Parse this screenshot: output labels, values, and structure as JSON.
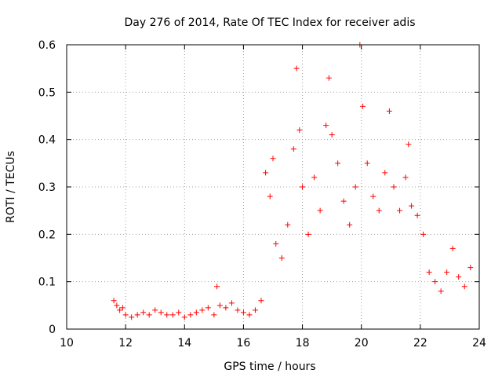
{
  "chart_data": {
    "type": "scatter",
    "title": "Day 276 of 2014, Rate Of TEC Index for receiver adis",
    "xlabel": "GPS time / hours",
    "ylabel": "ROTI / TECUs",
    "xlim": [
      10,
      24
    ],
    "ylim": [
      0,
      0.6
    ],
    "grid": true,
    "marker": "+",
    "color": "#ff0000",
    "x_ticks": [
      10,
      12,
      14,
      16,
      18,
      20,
      22,
      24
    ],
    "x_tick_labels": [
      "10",
      "12",
      "14",
      "16",
      "18",
      "20",
      "22",
      "24"
    ],
    "y_ticks": [
      0,
      0.1,
      0.2,
      0.3,
      0.4,
      0.5,
      0.6
    ],
    "y_tick_labels": [
      "0",
      "0.1",
      "0.2",
      "0.3",
      "0.4",
      "0.5",
      "0.6"
    ],
    "series": [
      {
        "name": "adis",
        "x": [
          11.6,
          11.7,
          11.8,
          11.9,
          12.0,
          12.2,
          12.4,
          12.6,
          12.8,
          13.0,
          13.2,
          13.4,
          13.6,
          13.8,
          14.0,
          14.2,
          14.4,
          14.6,
          14.8,
          15.0,
          15.1,
          15.2,
          15.4,
          15.6,
          15.8,
          16.0,
          16.2,
          16.4,
          16.6,
          16.75,
          16.9,
          17.0,
          17.1,
          17.3,
          17.5,
          17.7,
          17.8,
          17.9,
          18.0,
          18.2,
          18.4,
          18.6,
          18.8,
          18.9,
          19.0,
          19.2,
          19.4,
          19.6,
          19.8,
          19.95,
          20.05,
          20.2,
          20.4,
          20.6,
          20.8,
          20.95,
          21.1,
          21.3,
          21.5,
          21.6,
          21.7,
          21.9,
          22.1,
          22.3,
          22.5,
          22.7,
          22.9,
          23.1,
          23.3,
          23.5,
          23.7
        ],
        "y": [
          0.06,
          0.05,
          0.04,
          0.045,
          0.03,
          0.025,
          0.03,
          0.035,
          0.03,
          0.04,
          0.035,
          0.03,
          0.03,
          0.035,
          0.025,
          0.03,
          0.035,
          0.04,
          0.045,
          0.03,
          0.09,
          0.05,
          0.045,
          0.055,
          0.04,
          0.035,
          0.03,
          0.04,
          0.06,
          0.33,
          0.28,
          0.36,
          0.18,
          0.15,
          0.22,
          0.38,
          0.55,
          0.42,
          0.3,
          0.2,
          0.32,
          0.25,
          0.43,
          0.53,
          0.41,
          0.35,
          0.27,
          0.22,
          0.3,
          0.6,
          0.47,
          0.35,
          0.28,
          0.25,
          0.33,
          0.46,
          0.3,
          0.25,
          0.32,
          0.39,
          0.26,
          0.24,
          0.2,
          0.12,
          0.1,
          0.08,
          0.12,
          0.17,
          0.11,
          0.09,
          0.13
        ]
      }
    ]
  }
}
